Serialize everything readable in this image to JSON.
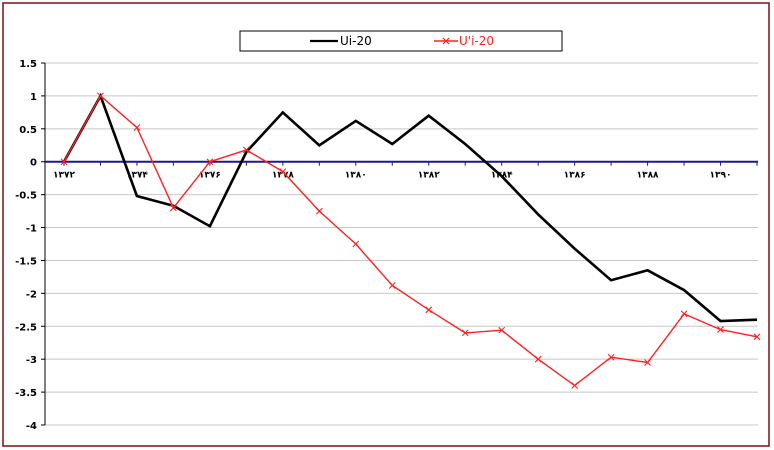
{
  "chart_data": {
    "type": "line",
    "title": "",
    "xlabel": "",
    "ylabel": "",
    "ylim": [
      -4,
      1.5
    ],
    "y_ticks": [
      "1.5",
      "1",
      "0.5",
      "0",
      "-0.5",
      "-1",
      "-1.5",
      "-2",
      "-2.5",
      "-3",
      "-3.5",
      "-4"
    ],
    "x": [
      1372,
      1373,
      1374,
      1375,
      1376,
      1377,
      1378,
      1379,
      1380,
      1381,
      1382,
      1383,
      1384,
      1385,
      1386,
      1387,
      1388,
      1389,
      1390,
      1391
    ],
    "x_tick_labels": [
      {
        "x": 1372,
        "label": "۱۳۷۲"
      },
      {
        "x": 1374,
        "label": "۱۳۷۴"
      },
      {
        "x": 1376,
        "label": "۱۳۷۶"
      },
      {
        "x": 1378,
        "label": "۱۳۷۸"
      },
      {
        "x": 1380,
        "label": "۱۳۸۰"
      },
      {
        "x": 1382,
        "label": "۱۳۸۲"
      },
      {
        "x": 1384,
        "label": "۱۳۸۴"
      },
      {
        "x": 1386,
        "label": "۱۳۸۶"
      },
      {
        "x": 1388,
        "label": "۱۳۸۸"
      },
      {
        "x": 1390,
        "label": "۱۳۹۰"
      }
    ],
    "grid": true,
    "legend_position": "top",
    "series": [
      {
        "name": "Ui-20",
        "color": "#000000",
        "marker": "none",
        "values": [
          0,
          1,
          -0.52,
          -0.67,
          -0.98,
          0.15,
          0.75,
          0.25,
          0.62,
          0.27,
          0.7,
          0.27,
          -0.22,
          -0.8,
          -1.32,
          -1.8,
          -1.65,
          -1.95,
          -2.42,
          -2.4
        ]
      },
      {
        "name": "U'i-20",
        "color": "#ff2020",
        "marker": "x",
        "values": [
          0,
          1,
          0.52,
          -0.7,
          0,
          0.18,
          -0.15,
          -0.75,
          -1.25,
          -1.88,
          -2.25,
          -2.6,
          -2.56,
          -3.0,
          -3.4,
          -2.97,
          -3.05,
          -2.31,
          -2.55,
          -2.66
        ]
      }
    ]
  }
}
